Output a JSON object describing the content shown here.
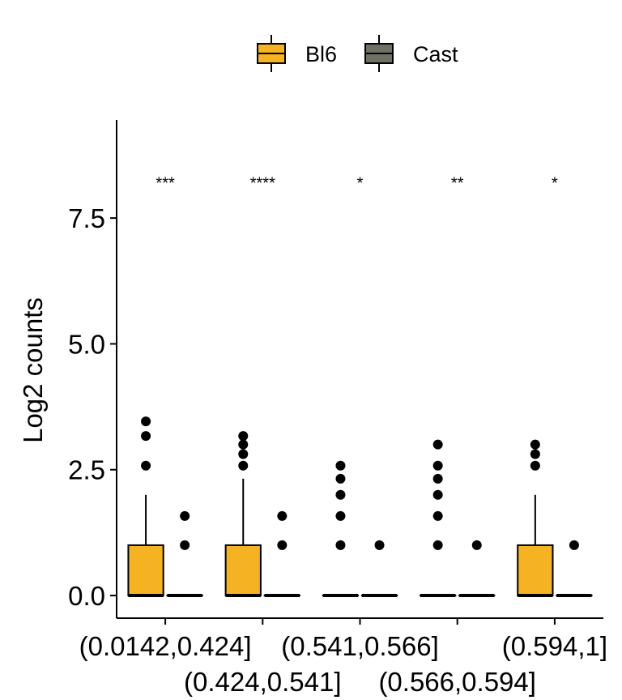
{
  "chart_data": {
    "type": "boxplot",
    "title": "",
    "xlabel": "",
    "ylabel": "Log2 counts",
    "ylim": [
      -0.45,
      9.45
    ],
    "yticks": [
      "0.0",
      "2.5",
      "5.0",
      "7.5"
    ],
    "ytick_values": [
      0,
      2.5,
      5,
      7.5
    ],
    "categories": [
      "(0.0142,0.424]",
      "(0.424,0.541]",
      "(0.541,0.566]",
      "(0.566,0.594]",
      "(0.594,1]"
    ],
    "legend": {
      "position": "top",
      "entries": [
        "Bl6",
        "Cast"
      ]
    },
    "colors": {
      "Bl6": "#F5B323",
      "Cast": "#6F7262"
    },
    "grid": false,
    "series": [
      {
        "name": "Bl6",
        "boxes": [
          {
            "q1": 0,
            "median": 0,
            "q3": 1.0,
            "whisker_low": 0,
            "whisker_high": 2.0,
            "outliers": [
              2.58,
              3.17,
              3.46
            ]
          },
          {
            "q1": 0,
            "median": 0,
            "q3": 1.0,
            "whisker_low": 0,
            "whisker_high": 2.32,
            "outliers": [
              2.58,
              2.81,
              3.0,
              3.17
            ]
          },
          {
            "q1": 0,
            "median": 0,
            "q3": 0,
            "whisker_low": 0,
            "whisker_high": 0,
            "outliers": [
              1.0,
              1.58,
              2.0,
              2.32,
              2.58
            ]
          },
          {
            "q1": 0,
            "median": 0,
            "q3": 0,
            "whisker_low": 0,
            "whisker_high": 0,
            "outliers": [
              1.0,
              1.58,
              2.0,
              2.32,
              2.58,
              3.0
            ]
          },
          {
            "q1": 0,
            "median": 0,
            "q3": 1.0,
            "whisker_low": 0,
            "whisker_high": 2.0,
            "outliers": [
              2.58,
              2.81,
              3.0
            ]
          }
        ]
      },
      {
        "name": "Cast",
        "boxes": [
          {
            "q1": 0,
            "median": 0,
            "q3": 0,
            "whisker_low": 0,
            "whisker_high": 0,
            "outliers": [
              1.0,
              1.58
            ]
          },
          {
            "q1": 0,
            "median": 0,
            "q3": 0,
            "whisker_low": 0,
            "whisker_high": 0,
            "outliers": [
              1.0,
              1.58
            ]
          },
          {
            "q1": 0,
            "median": 0,
            "q3": 0,
            "whisker_low": 0,
            "whisker_high": 0,
            "outliers": [
              1.0
            ]
          },
          {
            "q1": 0,
            "median": 0,
            "q3": 0,
            "whisker_low": 0,
            "whisker_high": 0,
            "outliers": [
              1.0
            ]
          },
          {
            "q1": 0,
            "median": 0,
            "q3": 0,
            "whisker_low": 0,
            "whisker_high": 0,
            "outliers": [
              1.0
            ]
          }
        ]
      }
    ],
    "significance": {
      "y": 8.2,
      "labels": [
        "***",
        "****",
        "*",
        "**",
        "*"
      ]
    }
  }
}
